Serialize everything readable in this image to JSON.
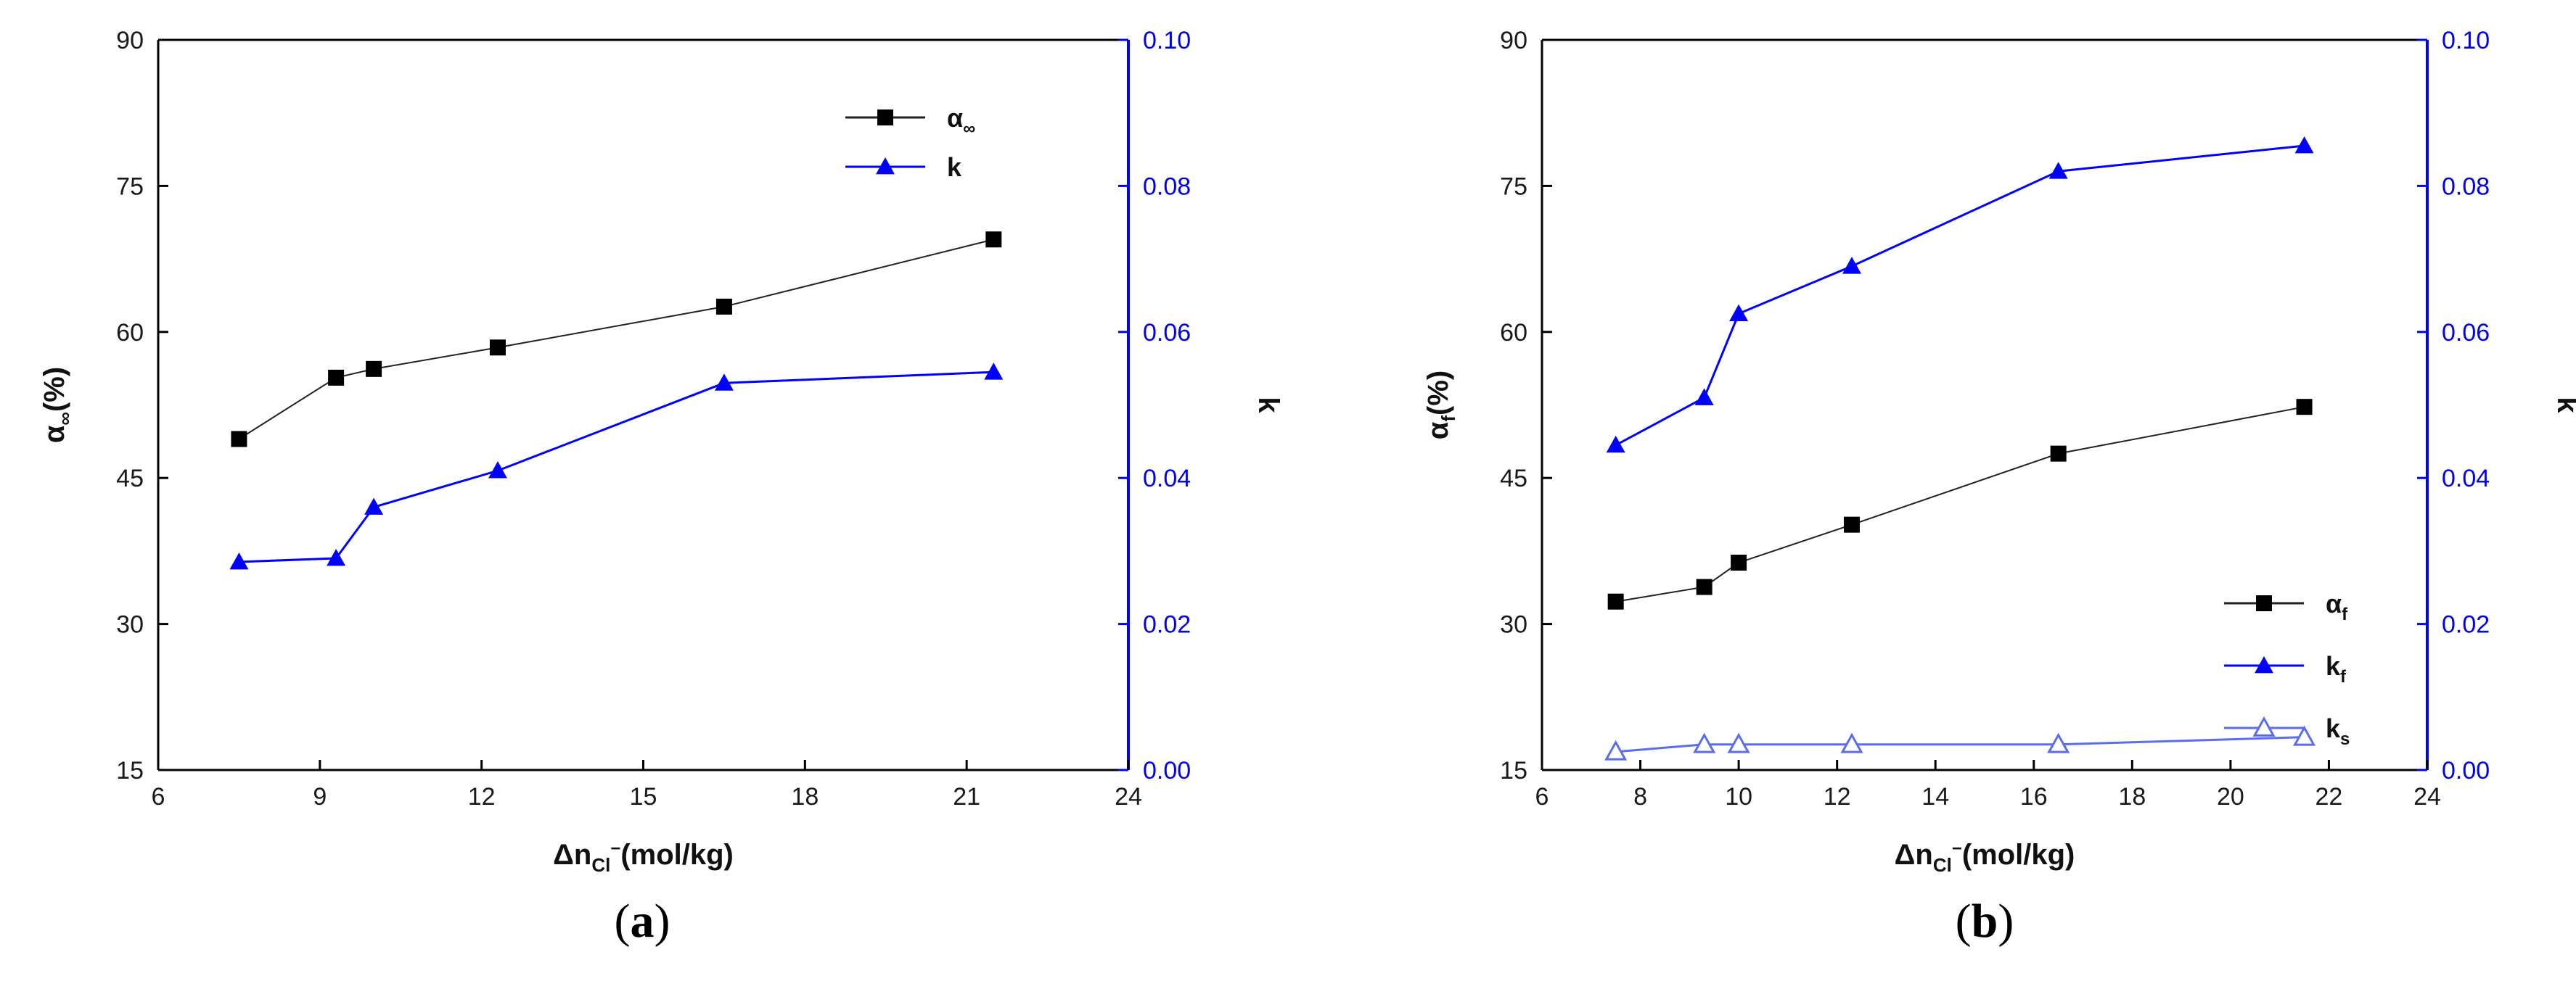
{
  "chart_data": [
    {
      "id": "a",
      "type": "line",
      "caption_open": "(",
      "caption_letter": "a",
      "caption_close": ")",
      "xlabel": "Δn",
      "xlabel_sub": "Cl",
      "xlabel_sup": "−",
      "xlabel_tail": "(mol/kg)",
      "ylabel_left": "α",
      "ylabel_left_sub": "∞",
      "ylabel_left_tail": "(%)",
      "ylabel_right": "k",
      "xlim": [
        6,
        24
      ],
      "ylim_left": [
        15,
        90
      ],
      "ylim_right": [
        0,
        0.1
      ],
      "xticks": [
        6,
        9,
        12,
        15,
        18,
        21,
        24
      ],
      "yticks_left": [
        15,
        30,
        45,
        60,
        75,
        90
      ],
      "yticks_right": [
        "0.00",
        "0.02",
        "0.04",
        "0.06",
        "0.08",
        "0.10"
      ],
      "grid": false,
      "legend_position": "top-right",
      "series": [
        {
          "name": "α",
          "name_sub": "∞",
          "axis": "left",
          "color": "#000000",
          "marker": "square",
          "x": [
            7.5,
            9.3,
            10.0,
            12.3,
            16.5,
            21.5
          ],
          "y": [
            49,
            55.3,
            56.2,
            58.4,
            62.6,
            69.5
          ]
        },
        {
          "name": "k",
          "name_sub": "",
          "axis": "right",
          "color": "#0000ff",
          "marker": "triangle",
          "x": [
            7.5,
            9.3,
            10.0,
            12.3,
            16.5,
            21.5
          ],
          "y": [
            0.0285,
            0.029,
            0.036,
            0.041,
            0.053,
            0.0545
          ]
        }
      ]
    },
    {
      "id": "b",
      "type": "line",
      "caption_open": "(",
      "caption_letter": "b",
      "caption_close": ")",
      "xlabel": "Δn",
      "xlabel_sub": "Cl",
      "xlabel_sup": "−",
      "xlabel_tail": "(mol/kg)",
      "ylabel_left": "α",
      "ylabel_left_sub": "f",
      "ylabel_left_tail": "(%)",
      "ylabel_right": "k",
      "xlim": [
        6,
        24
      ],
      "ylim_left": [
        15,
        90
      ],
      "ylim_right": [
        0,
        0.1
      ],
      "xticks": [
        6,
        8,
        10,
        12,
        14,
        16,
        18,
        20,
        22,
        24
      ],
      "yticks_left": [
        15,
        30,
        45,
        60,
        75,
        90
      ],
      "yticks_right": [
        "0.00",
        "0.02",
        "0.04",
        "0.06",
        "0.08",
        "0.10"
      ],
      "grid": false,
      "legend_position": "middle-right",
      "series": [
        {
          "name": "α",
          "name_sub": "f",
          "axis": "left",
          "color": "#000000",
          "marker": "square",
          "x": [
            7.5,
            9.3,
            10.0,
            12.3,
            16.5,
            21.5
          ],
          "y": [
            32.3,
            33.8,
            36.3,
            40.2,
            47.5,
            52.3
          ]
        },
        {
          "name": "k",
          "name_sub": "f",
          "axis": "right",
          "color": "#0000ff",
          "marker": "triangle",
          "x": [
            7.5,
            9.3,
            10.0,
            12.3,
            16.5,
            21.5
          ],
          "y": [
            0.0445,
            0.051,
            0.0625,
            0.069,
            0.082,
            0.0855
          ]
        },
        {
          "name": "k",
          "name_sub": "s",
          "axis": "right",
          "color": "#5a6cf0",
          "marker": "triangle-open",
          "x": [
            7.5,
            9.3,
            10.0,
            12.3,
            16.5,
            21.5
          ],
          "y": [
            0.0025,
            0.0035,
            0.0035,
            0.0035,
            0.0035,
            0.0045
          ]
        }
      ]
    }
  ]
}
